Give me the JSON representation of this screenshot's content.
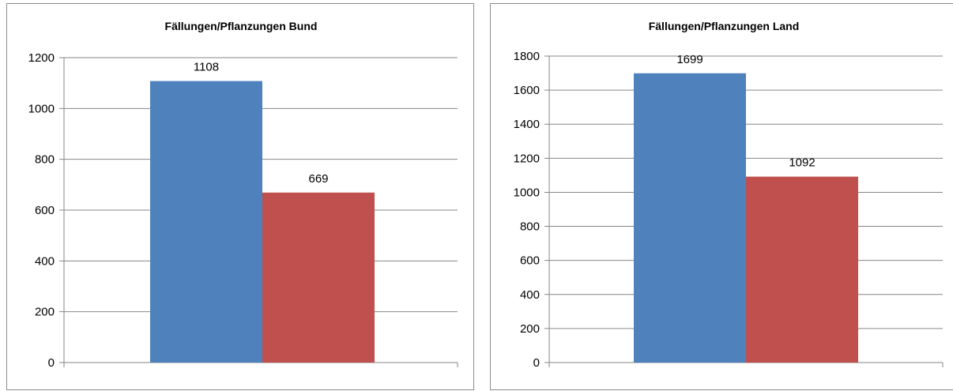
{
  "chart_data": [
    {
      "type": "bar",
      "title": "Fällungen/Pflanzungen Bund",
      "xlabel": "",
      "ylabel": "",
      "ylim": [
        0,
        1200
      ],
      "yticks": [
        "0",
        "200",
        "400",
        "600",
        "800",
        "1000",
        "1200"
      ],
      "grid": true,
      "legend": "none",
      "series": [
        {
          "values": [
            1108
          ],
          "color": "#4F81BD",
          "label": "1108"
        },
        {
          "values": [
            669
          ],
          "color": "#C0504D",
          "label": "669"
        }
      ]
    },
    {
      "type": "bar",
      "title": "Fällungen/Pflanzungen Land",
      "xlabel": "",
      "ylabel": "",
      "ylim": [
        0,
        1800
      ],
      "yticks": [
        "0",
        "200",
        "400",
        "600",
        "800",
        "1000",
        "1200",
        "1400",
        "1600",
        "1800"
      ],
      "grid": true,
      "legend": "none",
      "series": [
        {
          "values": [
            1699
          ],
          "color": "#4F81BD",
          "label": "1699"
        },
        {
          "values": [
            1092
          ],
          "color": "#C0504D",
          "label": "1092"
        }
      ]
    }
  ]
}
